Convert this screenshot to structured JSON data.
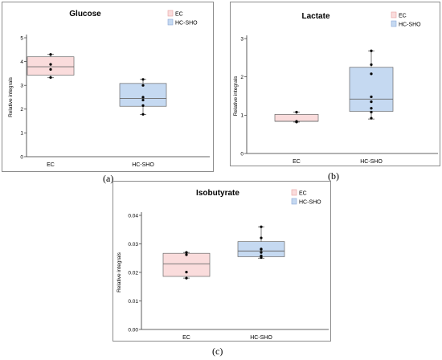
{
  "colors": {
    "ec": "#fadcdc",
    "ec_stroke": "#e8a0a0",
    "hc": "#c5d9f1",
    "hc_stroke": "#8aa8d8",
    "point": "#000000"
  },
  "captions": [
    "(a)",
    "(b)",
    "(c)"
  ],
  "chart_data": [
    {
      "type": "box",
      "title": "Glucose",
      "xlabel": "",
      "ylabel": "Relative integrals",
      "categories": [
        "EC",
        "HC-SHO"
      ],
      "ylim": [
        0,
        5
      ],
      "yticks": [
        "0",
        "1",
        "2",
        "3",
        "4",
        "5"
      ],
      "legend": [
        "EC",
        "HC-SHO"
      ],
      "legend_position": "top-right",
      "boxes": [
        {
          "q1": 3.43,
          "median": 3.78,
          "q3": 4.2,
          "whisker_low": 3.32,
          "whisker_high": 4.3,
          "points": [
            4.3,
            3.88,
            3.67,
            3.33
          ]
        },
        {
          "q1": 2.12,
          "median": 2.45,
          "q3": 3.08,
          "whisker_low": 1.77,
          "whisker_high": 3.25,
          "points": [
            3.25,
            3.0,
            2.5,
            2.38,
            2.15,
            1.78
          ]
        }
      ]
    },
    {
      "type": "box",
      "title": "Lactate",
      "xlabel": "",
      "ylabel": "Relative integrals",
      "categories": [
        "EC",
        "HC-SHO"
      ],
      "ylim": [
        0,
        3
      ],
      "yticks": [
        "0",
        "1",
        "2",
        "3"
      ],
      "legend": [
        "EC",
        "HC-SHO"
      ],
      "legend_position": "top-right",
      "boxes": [
        {
          "q1": 0.84,
          "median": 0.84,
          "q3": 1.02,
          "whisker_low": 0.82,
          "whisker_high": 1.08,
          "points": [
            1.08,
            0.84,
            0.82
          ]
        },
        {
          "q1": 1.1,
          "median": 1.42,
          "q3": 2.25,
          "whisker_low": 0.9,
          "whisker_high": 2.68,
          "points": [
            2.68,
            2.32,
            2.08,
            1.48,
            1.35,
            1.18,
            1.08,
            0.92
          ]
        }
      ]
    },
    {
      "type": "box",
      "title": "Isobutyrate",
      "xlabel": "",
      "ylabel": "Relative integrals",
      "categories": [
        "EC",
        "HC-SHO"
      ],
      "ylim": [
        0,
        0.04
      ],
      "yticks": [
        "0.00",
        "0.01",
        "0.02",
        "0.03",
        "0.04"
      ],
      "legend": [
        "EC",
        "HC-SHO"
      ],
      "legend_position": "top-right",
      "boxes": [
        {
          "q1": 0.0186,
          "median": 0.023,
          "q3": 0.0267,
          "whisker_low": 0.018,
          "whisker_high": 0.027,
          "points": [
            0.027,
            0.0262,
            0.0201,
            0.018
          ]
        },
        {
          "q1": 0.0255,
          "median": 0.0275,
          "q3": 0.0308,
          "whisker_low": 0.025,
          "whisker_high": 0.036,
          "points": [
            0.036,
            0.0321,
            0.0282,
            0.0281,
            0.027,
            0.0258,
            0.0252
          ]
        }
      ]
    }
  ]
}
